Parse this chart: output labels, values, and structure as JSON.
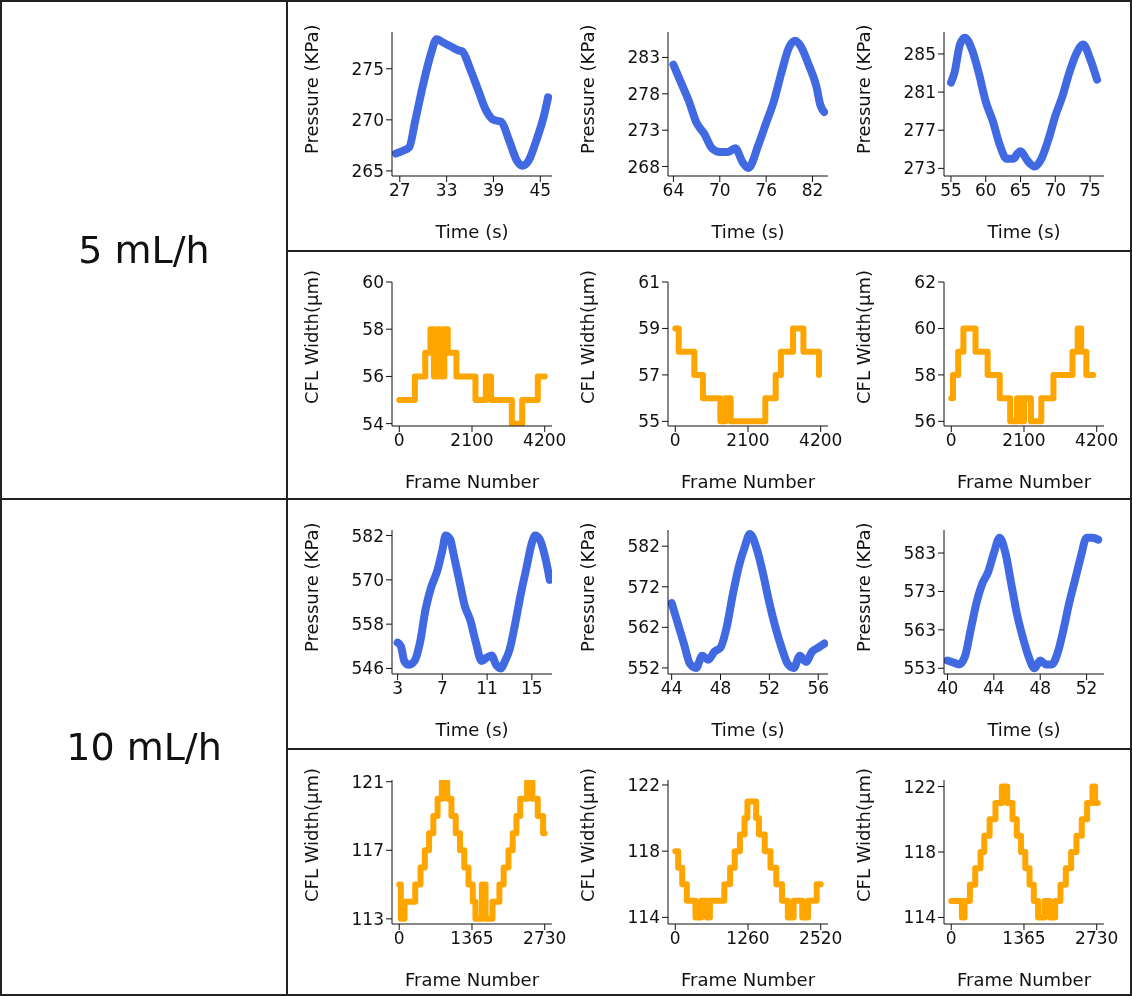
{
  "chart_data": [
    {
      "type": "line",
      "annotations": [
        "5 mL/h"
      ],
      "xlabel": "Time (s)",
      "ylabel": "Pressure (KPa)",
      "xlim": [
        26,
        46.5
      ],
      "xticks": [
        27,
        33,
        39,
        45
      ],
      "ylim": [
        264.5,
        278.6
      ],
      "yticks": [
        265,
        270,
        275
      ],
      "series": [
        {
          "color": "#4169e1",
          "x": [
            26.5,
            27.5,
            28.2,
            29,
            30,
            31,
            31.7,
            32.5,
            33.5,
            34.5,
            35,
            36,
            37,
            38,
            39,
            40,
            41,
            42,
            42.7,
            43.5,
            44.5,
            45.5,
            46
          ],
          "values": [
            266.7,
            267,
            267.3,
            270,
            273.5,
            276.5,
            277.9,
            277.6,
            277.2,
            276.8,
            276.7,
            275,
            273,
            271,
            270,
            269.8,
            268,
            266,
            265.5,
            266,
            268,
            270.5,
            272.2
          ]
        }
      ]
    },
    {
      "type": "line",
      "xlabel": "Time (s)",
      "ylabel": "Pressure (KPa)",
      "xlim": [
        63.3,
        84
      ],
      "xticks": [
        64,
        70,
        76,
        82
      ],
      "ylim": [
        266.7,
        286.5
      ],
      "yticks": [
        268,
        273,
        278,
        283
      ],
      "series": [
        {
          "color": "#4169e1",
          "x": [
            64,
            65,
            66,
            67,
            68,
            69,
            70,
            71,
            72,
            73,
            73.7,
            75,
            76,
            77,
            78,
            79,
            79.8,
            80.5,
            81.5,
            82.5,
            83,
            83.5
          ],
          "values": [
            282,
            279.5,
            277,
            274,
            272.5,
            270.5,
            270,
            270,
            270.5,
            268.5,
            267.8,
            271,
            274,
            277,
            281,
            284.5,
            285.3,
            284.5,
            282,
            279,
            276.5,
            275.5
          ]
        }
      ]
    },
    {
      "type": "line",
      "xlabel": "Time (s)",
      "ylabel": "Pressure (KPa)",
      "xlim": [
        54,
        77
      ],
      "xticks": [
        55,
        60,
        65,
        70,
        75
      ],
      "ylim": [
        272.2,
        287.3
      ],
      "yticks": [
        273,
        277,
        281,
        285
      ],
      "series": [
        {
          "color": "#4169e1",
          "x": [
            55,
            55.5,
            56.3,
            57,
            58,
            59,
            60,
            61,
            62,
            63,
            64,
            64.5,
            65,
            66,
            67,
            68,
            69,
            70,
            71,
            72,
            73,
            74,
            75,
            76
          ],
          "values": [
            282,
            283,
            286,
            286.7,
            285.5,
            283,
            280,
            278,
            275.5,
            274,
            274,
            274.5,
            274.8,
            273.8,
            273.2,
            274,
            276,
            278.5,
            280.5,
            283,
            285,
            286,
            284.5,
            282.3
          ]
        }
      ]
    },
    {
      "type": "step",
      "xlabel": "Frame Number",
      "ylabel": "CFL Width(µm)",
      "xlim": [
        -210,
        4410
      ],
      "xticks": [
        0,
        2100,
        4200
      ],
      "ylim": [
        53.9,
        60
      ],
      "yticks": [
        54,
        56,
        58,
        60
      ],
      "series": [
        {
          "color": "#ffa500",
          "x": [
            0,
            450,
            750,
            900,
            1000,
            1100,
            1200,
            1300,
            1400,
            1550,
            1650,
            1900,
            2200,
            2500,
            2650,
            2950,
            3250,
            3550,
            4000,
            4200
          ],
          "values": [
            55,
            56,
            57,
            58,
            56,
            58,
            56,
            58,
            57,
            57,
            56,
            56,
            55,
            56,
            55,
            55,
            54,
            55,
            56,
            56
          ]
        }
      ]
    },
    {
      "type": "step",
      "xlabel": "Frame Number",
      "ylabel": "CFL Width(µm)",
      "xlim": [
        -210,
        4410
      ],
      "xticks": [
        0,
        2100,
        4200
      ],
      "ylim": [
        54.8,
        61
      ],
      "yticks": [
        55,
        57,
        59,
        61
      ],
      "series": [
        {
          "color": "#ffa500",
          "x": [
            0,
            100,
            550,
            800,
            1300,
            1450,
            1600,
            2600,
            2900,
            3050,
            3400,
            3700,
            4100,
            4150
          ],
          "values": [
            59,
            58,
            57,
            56,
            55,
            56,
            55,
            56,
            57,
            58,
            59,
            58,
            58,
            57
          ]
        }
      ]
    },
    {
      "type": "step",
      "xlabel": "Frame Number",
      "ylabel": "CFL Width(µm)",
      "xlim": [
        -210,
        4410
      ],
      "xticks": [
        0,
        2100,
        4200
      ],
      "ylim": [
        55.8,
        62
      ],
      "yticks": [
        56,
        58,
        60,
        62
      ],
      "series": [
        {
          "color": "#ffa500",
          "x": [
            0,
            50,
            200,
            350,
            700,
            1050,
            1400,
            1700,
            1900,
            2000,
            2100,
            2300,
            2600,
            2950,
            3500,
            3650,
            3750,
            3900,
            4100
          ],
          "values": [
            57,
            58,
            59,
            60,
            59,
            58,
            57,
            56,
            57,
            56,
            57,
            56,
            57,
            58,
            59,
            60,
            59,
            58,
            58
          ]
        }
      ]
    },
    {
      "type": "line",
      "annotations": [
        "10 mL/h"
      ],
      "xlabel": "Time (s)",
      "ylabel": "Pressure (KPa)",
      "xlim": [
        2.5,
        16.8
      ],
      "xticks": [
        3,
        7,
        11,
        15
      ],
      "ylim": [
        544.5,
        583.5
      ],
      "yticks": [
        546,
        558,
        570,
        582
      ],
      "series": [
        {
          "color": "#4169e1",
          "x": [
            3,
            3.3,
            3.6,
            4,
            4.5,
            5,
            5.5,
            6,
            6.5,
            7,
            7.3,
            7.7,
            8,
            8.5,
            9,
            9.5,
            10,
            10.5,
            11,
            11.4,
            11.8,
            12.2,
            12.6,
            13,
            13.5,
            14,
            14.5,
            15,
            15.3,
            15.7,
            16.2,
            16.6
          ],
          "values": [
            553,
            552,
            548,
            547,
            548,
            553,
            562,
            568,
            572,
            578,
            582,
            581,
            577,
            570,
            563,
            559,
            553,
            548,
            549,
            549.5,
            547,
            546,
            548,
            551,
            558,
            566,
            573,
            580,
            582,
            581,
            576,
            570
          ]
        }
      ]
    },
    {
      "type": "line",
      "xlabel": "Time (s)",
      "ylabel": "Pressure (KPa)",
      "xlim": [
        43.7,
        56.8
      ],
      "xticks": [
        44,
        48,
        52,
        56
      ],
      "ylim": [
        550.5,
        586
      ],
      "yticks": [
        552,
        562,
        572,
        582
      ],
      "series": [
        {
          "color": "#4169e1",
          "x": [
            44,
            44.5,
            45,
            45.5,
            46,
            46.5,
            47,
            47.5,
            48,
            48.5,
            49,
            49.5,
            50,
            50.4,
            51,
            51.5,
            52,
            52.5,
            53,
            53.5,
            54,
            54.5,
            55,
            55.5,
            56,
            56.5
          ],
          "values": [
            568,
            563,
            558,
            553,
            552,
            555,
            554,
            556,
            557,
            562,
            570,
            577,
            582,
            585,
            581,
            575,
            568,
            562,
            557,
            553,
            552,
            555,
            553.5,
            556,
            557,
            558
          ]
        }
      ]
    },
    {
      "type": "line",
      "xlabel": "Time (s)",
      "ylabel": "Pressure (KPa)",
      "xlim": [
        39.7,
        53.5
      ],
      "xticks": [
        40,
        44,
        48,
        52
      ],
      "ylim": [
        551.5,
        589
      ],
      "yticks": [
        553,
        563,
        573,
        583
      ],
      "series": [
        {
          "color": "#4169e1",
          "x": [
            40,
            40.5,
            41,
            41.5,
            42,
            42.5,
            43,
            43.5,
            44,
            44.5,
            45,
            45.5,
            46,
            46.5,
            47,
            47.5,
            48,
            48.5,
            49,
            49.5,
            50,
            50.5,
            51,
            51.5,
            52,
            52.5,
            53
          ],
          "values": [
            555,
            554.5,
            554,
            556,
            563,
            570,
            575,
            578,
            583,
            587,
            583,
            575,
            567,
            561,
            556,
            553,
            555,
            554,
            554,
            557,
            563,
            570,
            576,
            582,
            587,
            587,
            586.5
          ]
        }
      ]
    },
    {
      "type": "step",
      "xlabel": "Frame Number",
      "ylabel": "CFL Width(µm)",
      "xlim": [
        -136,
        2867
      ],
      "xticks": [
        0,
        1365,
        2730
      ],
      "ylim": [
        112.7,
        121.1
      ],
      "yticks": [
        113,
        117,
        121
      ],
      "series": [
        {
          "color": "#ffa500",
          "x": [
            0,
            30,
            100,
            300,
            400,
            480,
            560,
            640,
            720,
            800,
            900,
            980,
            1060,
            1140,
            1220,
            1300,
            1380,
            1430,
            1550,
            1620,
            1750,
            1880,
            1960,
            2050,
            2130,
            2200,
            2270,
            2400,
            2500,
            2600,
            2700,
            2730
          ],
          "values": [
            115,
            113,
            114,
            115,
            116,
            117,
            118,
            119,
            120,
            121,
            120,
            119,
            118,
            117,
            116,
            115,
            114,
            113,
            115,
            113,
            114,
            115,
            116,
            117,
            118,
            119,
            120,
            121,
            120,
            119,
            118,
            118
          ]
        }
      ]
    },
    {
      "type": "step",
      "xlabel": "Frame Number",
      "ylabel": "CFL Width(µm)",
      "xlim": [
        -126,
        2646
      ],
      "xticks": [
        0,
        1260,
        2520
      ],
      "ylim": [
        113.6,
        122.3
      ],
      "yticks": [
        114,
        118,
        122
      ],
      "series": [
        {
          "color": "#ffa500",
          "x": [
            0,
            50,
            120,
            200,
            350,
            450,
            550,
            600,
            750,
            850,
            950,
            1030,
            1120,
            1200,
            1250,
            1400,
            1450,
            1550,
            1650,
            1750,
            1850,
            1950,
            2050,
            2200,
            2300,
            2450,
            2520
          ],
          "values": [
            118,
            117,
            116,
            115,
            114,
            115,
            114,
            115,
            115,
            116,
            117,
            118,
            119,
            120,
            121,
            120,
            119,
            118,
            117,
            116,
            115,
            114,
            115,
            114,
            115,
            116,
            116
          ]
        }
      ]
    },
    {
      "type": "step",
      "xlabel": "Frame Number",
      "ylabel": "CFL Width(µm)",
      "xlim": [
        -136,
        2867
      ],
      "xticks": [
        0,
        1365,
        2730
      ],
      "ylim": [
        113.6,
        122.4
      ],
      "yticks": [
        114,
        118,
        122
      ],
      "series": [
        {
          "color": "#ffa500",
          "x": [
            0,
            200,
            250,
            350,
            450,
            550,
            620,
            720,
            830,
            950,
            1050,
            1150,
            1230,
            1310,
            1390,
            1470,
            1550,
            1630,
            1750,
            1850,
            1950,
            2050,
            2150,
            2250,
            2350,
            2450,
            2550,
            2650,
            2700,
            2750
          ],
          "values": [
            115,
            114,
            115,
            116,
            117,
            118,
            119,
            120,
            121,
            122,
            121,
            120,
            119,
            118,
            117,
            116,
            115,
            114,
            115,
            114,
            115,
            116,
            117,
            118,
            119,
            120,
            121,
            122,
            121,
            121
          ]
        }
      ]
    }
  ]
}
